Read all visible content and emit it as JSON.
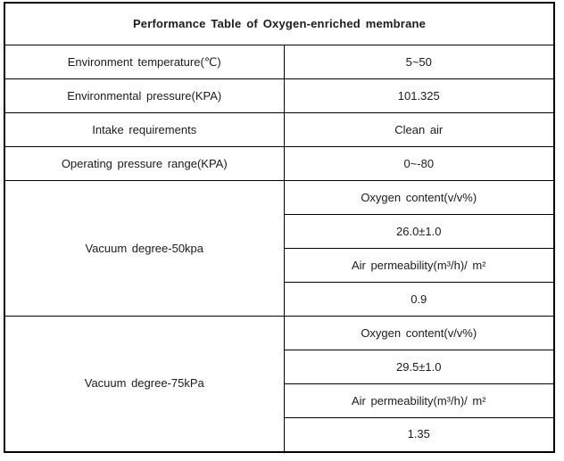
{
  "table": {
    "title": "Performance Table of Oxygen-enriched membrane",
    "rows": [
      {
        "label": "Environment temperature(℃)",
        "value": "5~50"
      },
      {
        "label": "Environmental pressure(KPA)",
        "value": "101.325"
      },
      {
        "label": "Intake requirements",
        "value": "Clean air"
      },
      {
        "label": "Operating pressure range(KPA)",
        "value": "0~-80"
      }
    ],
    "groups": [
      {
        "label": "Vacuum degree-50kpa",
        "sub_rows": [
          "Oxygen content(v/v%)",
          "26.0±1.0",
          "Air permeability(m³/h)/  m²",
          "0.9"
        ]
      },
      {
        "label": "Vacuum degree-75kPa",
        "sub_rows": [
          "Oxygen content(v/v%)",
          "29.5±1.0",
          "Air permeability(m³/h)/  m²",
          "1.35"
        ]
      }
    ],
    "colors": {
      "border": "#000000",
      "text": "#1b1b1b",
      "background": "#ffffff"
    }
  }
}
